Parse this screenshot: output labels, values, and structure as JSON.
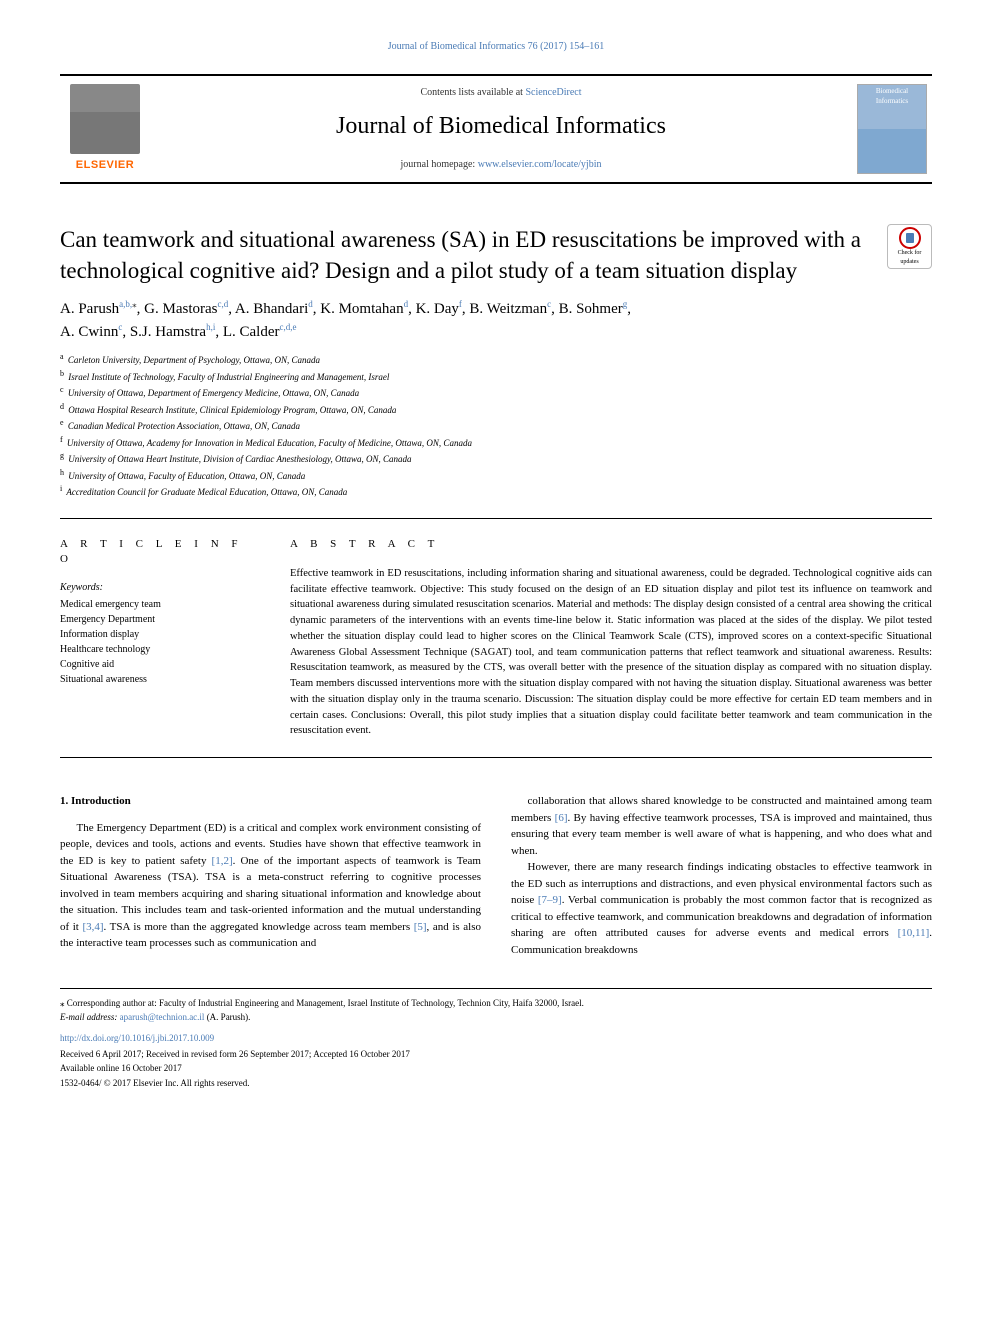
{
  "running_head": "Journal of Biomedical Informatics 76 (2017) 154–161",
  "header": {
    "contents_text": "Contents lists available at ",
    "contents_link": "ScienceDirect",
    "journal_title": "Journal of Biomedical Informatics",
    "homepage_text": "journal homepage: ",
    "homepage_link": "www.elsevier.com/locate/yjbin",
    "elsevier": "ELSEVIER",
    "cover_label": "Biomedical Informatics"
  },
  "badge_text": "Check for updates",
  "title": "Can teamwork and situational awareness (SA) in ED resuscitations be improved with a technological cognitive aid? Design and a pilot study of a team situation display",
  "authors_line1_html": "A. Parush<sup>a,b,</sup><sup class='ast'>⁎</sup>, G. Mastoras<sup>c,d</sup>, A. Bhandari<sup>d</sup>, K. Momtahan<sup>d</sup>, K. Day<sup>f</sup>, B. Weitzman<sup>c</sup>, B. Sohmer<sup>g</sup>,",
  "authors_line2_html": "A. Cwinn<sup>c</sup>, S.J. Hamstra<sup>h,i</sup>, L. Calder<sup>c,d,e</sup>",
  "affiliations": [
    {
      "sup": "a",
      "text": "Carleton University, Department of Psychology, Ottawa, ON, Canada"
    },
    {
      "sup": "b",
      "text": "Israel Institute of Technology, Faculty of Industrial Engineering and Management, Israel"
    },
    {
      "sup": "c",
      "text": "University of Ottawa, Department of Emergency Medicine, Ottawa, ON, Canada"
    },
    {
      "sup": "d",
      "text": "Ottawa Hospital Research Institute, Clinical Epidemiology Program, Ottawa, ON, Canada"
    },
    {
      "sup": "e",
      "text": "Canadian Medical Protection Association, Ottawa, ON, Canada"
    },
    {
      "sup": "f",
      "text": "University of Ottawa, Academy for Innovation in Medical Education, Faculty of Medicine, Ottawa, ON, Canada"
    },
    {
      "sup": "g",
      "text": "University of Ottawa Heart Institute, Division of Cardiac Anesthesiology, Ottawa, ON, Canada"
    },
    {
      "sup": "h",
      "text": "University of Ottawa, Faculty of Education, Ottawa, ON, Canada"
    },
    {
      "sup": "i",
      "text": "Accreditation Council for Graduate Medical Education, Ottawa, ON, Canada"
    }
  ],
  "info_label": "A R T I C L E  I N F O",
  "abstract_label": "A B S T R A C T",
  "keywords_label": "Keywords:",
  "keywords": [
    "Medical emergency team",
    "Emergency Department",
    "Information display",
    "Healthcare technology",
    "Cognitive aid",
    "Situational awareness"
  ],
  "abstract": "Effective teamwork in ED resuscitations, including information sharing and situational awareness, could be degraded. Technological cognitive aids can facilitate effective teamwork. Objective: This study focused on the design of an ED situation display and pilot test its influence on teamwork and situational awareness during simulated resuscitation scenarios. Material and methods: The display design consisted of a central area showing the critical dynamic parameters of the interventions with an events time-line below it. Static information was placed at the sides of the display. We pilot tested whether the situation display could lead to higher scores on the Clinical Teamwork Scale (CTS), improved scores on a context-specific Situational Awareness Global Assessment Technique (SAGAT) tool, and team communication patterns that reflect teamwork and situational awareness. Results: Resuscitation teamwork, as measured by the CTS, was overall better with the presence of the situation display as compared with no situation display. Team members discussed interventions more with the situation display compared with not having the situation display. Situational awareness was better with the situation display only in the trauma scenario. Discussion: The situation display could be more effective for certain ED team members and in certain cases. Conclusions: Overall, this pilot study implies that a situation display could facilitate better teamwork and team communication in the resuscitation event.",
  "intro": {
    "heading": "1. Introduction",
    "p1_a": "The Emergency Department (ED) is a critical and complex work environment consisting of people, devices and tools, actions and events. Studies have shown that effective teamwork in the ED is key to patient safety ",
    "p1_ref1": "[1,2]",
    "p1_b": ". One of the important aspects of teamwork is Team Situational Awareness (TSA). TSA is a meta-construct referring to cognitive processes involved in team members acquiring and sharing situational information and knowledge about the situation. This includes team and task-oriented information and the mutual understanding of it ",
    "p1_ref2": "[3,4]",
    "p1_c": ". TSA is more than the aggregated knowledge across team members ",
    "p1_ref3": "[5]",
    "p1_d": ", and is also the interactive team processes such as communication and",
    "p2_a": "collaboration that allows shared knowledge to be constructed and maintained among team members ",
    "p2_ref1": "[6]",
    "p2_b": ". By having effective teamwork processes, TSA is improved and maintained, thus ensuring that every team member is well aware of what is happening, and who does what and when.",
    "p3_a": "However, there are many research findings indicating obstacles to effective teamwork in the ED such as interruptions and distractions, and even physical environmental factors such as noise ",
    "p3_ref1": "[7–9]",
    "p3_b": ". Verbal communication is probably the most common factor that is recognized as critical to effective teamwork, and communication breakdowns and degradation of information sharing are often attributed causes for adverse events and medical errors ",
    "p3_ref2": "[10,11]",
    "p3_c": ". Communication breakdowns"
  },
  "footnote": {
    "corresponding": "⁎ Corresponding author at: Faculty of Industrial Engineering and Management, Israel Institute of Technology, Technion City, Haifa 32000, Israel.",
    "email_label": "E-mail address: ",
    "email": "aparush@technion.ac.il",
    "email_suffix": " (A. Parush).",
    "doi": "http://dx.doi.org/10.1016/j.jbi.2017.10.009",
    "history": "Received 6 April 2017; Received in revised form 26 September 2017; Accepted 16 October 2017",
    "available": "Available online 16 October 2017",
    "copyright": "1532-0464/ © 2017 Elsevier Inc. All rights reserved."
  },
  "colors": {
    "link": "#4a7bb5",
    "elsevier_orange": "#ff6600"
  }
}
